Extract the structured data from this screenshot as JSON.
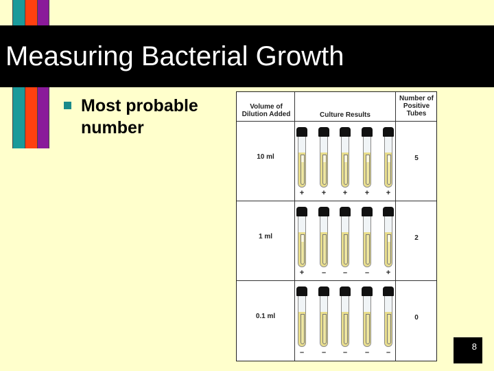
{
  "slide": {
    "title": "Measuring Bacterial Growth",
    "bullet": "Most probable number",
    "page_number": "8"
  },
  "figure": {
    "headers": {
      "volume": "Volume of Dilution Added",
      "results": "Culture Results",
      "count": "Number of Positive Tubes"
    },
    "rows": [
      {
        "volume": "10 ml",
        "results": [
          "+",
          "+",
          "+",
          "+",
          "+"
        ],
        "positive": "5"
      },
      {
        "volume": "1 ml",
        "results": [
          "+",
          "–",
          "–",
          "–",
          "+"
        ],
        "positive": "2"
      },
      {
        "volume": "0.1 ml",
        "results": [
          "–",
          "–",
          "–",
          "–",
          "–"
        ],
        "positive": "0"
      }
    ]
  },
  "colors": {
    "background": "#ffffcc",
    "title_bar": "#000000",
    "stripe_teal": "#1a9a9a",
    "stripe_red": "#ff4010",
    "stripe_purple": "#8a1a9a",
    "bullet": "#1a8a8a",
    "broth": "#e8dd8c"
  }
}
